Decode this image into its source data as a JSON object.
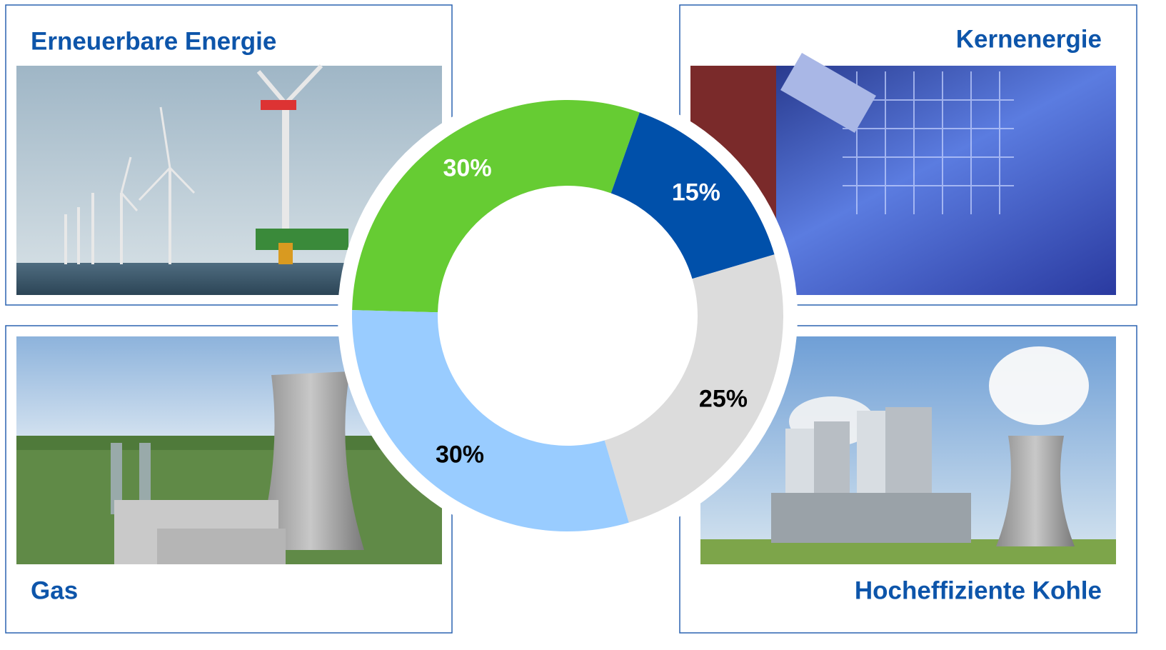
{
  "chart_data": {
    "type": "donut",
    "categories": [
      "Erneuerbare Energie",
      "Kernenergie",
      "Hocheffiziente Kohle",
      "Gas"
    ],
    "values": [
      30,
      15,
      25,
      30
    ],
    "value_labels": [
      "30%",
      "15%",
      "25%",
      "30%"
    ],
    "colors": [
      "#66cc33",
      "#0050aa",
      "#dcdcdc",
      "#99ccff"
    ],
    "label_colors": [
      "#ffffff",
      "#ffffff",
      "#000000",
      "#000000"
    ]
  }
}
